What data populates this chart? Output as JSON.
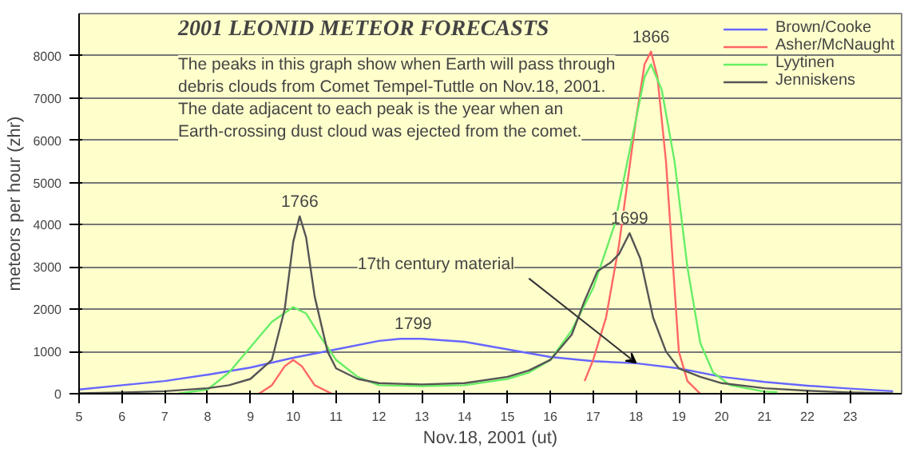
{
  "chart_data": {
    "type": "line",
    "title": "2001 LEONID METEOR FORECASTS",
    "xlabel": "Nov.18, 2001 (ut)",
    "ylabel": "meteors per hour (zhr)",
    "xlim": [
      5,
      24.2
    ],
    "xticks": [
      5,
      6,
      7,
      8,
      9,
      10,
      11,
      12,
      13,
      14,
      15,
      16,
      17,
      18,
      19,
      20,
      21,
      22,
      23
    ],
    "ylim": [
      0,
      9000
    ],
    "yticks": [
      0,
      1000,
      2000,
      3000,
      4000,
      5000,
      6000,
      7000,
      8000
    ],
    "grid": "y",
    "legend": "top right",
    "marker": "none",
    "line_style": "solid",
    "annotations": [
      "The peaks in this graph show when Earth will pass through\ndebris clouds from Comet Tempel-Tuttle on Nov.18, 2001.\nThe date adjacent to each peak is the year when an\nEarth-crossing dust cloud was ejected from the comet.",
      {
        "text": "1766",
        "x": 10.15,
        "y": 4200
      },
      {
        "text": "1799",
        "x": 12.8,
        "y": 1300
      },
      {
        "text": "1699",
        "x": 17.85,
        "y": 3800
      },
      {
        "text": "1866",
        "x": 18.35,
        "y": 8100
      },
      {
        "text": "17th century material",
        "x": 18.0,
        "y": 730
      }
    ],
    "series": [
      {
        "name": "Brown/Cooke",
        "color": "#6666ff",
        "x": [
          5,
          6,
          7,
          8,
          9,
          10,
          11,
          12,
          12.5,
          13,
          14,
          15,
          16,
          17,
          18,
          19,
          20,
          21,
          22,
          23,
          24
        ],
        "values": [
          100,
          200,
          300,
          450,
          620,
          850,
          1050,
          1250,
          1300,
          1300,
          1230,
          1050,
          870,
          770,
          720,
          600,
          400,
          280,
          190,
          120,
          60
        ]
      },
      {
        "name": "Asher/McNaught",
        "color": "#ff6666",
        "x": [
          9.2,
          9.5,
          9.8,
          10,
          10.2,
          10.5,
          10.9,
          16.5,
          16.8,
          17,
          17.3,
          17.6,
          17.8,
          18,
          18.2,
          18.35,
          18.5,
          18.7,
          18.9,
          19,
          19.2,
          19.5
        ],
        "values": [
          0,
          200,
          650,
          800,
          650,
          200,
          0,
          null,
          300,
          800,
          1800,
          3500,
          5000,
          6500,
          7800,
          8100,
          7500,
          5500,
          2500,
          1000,
          300,
          0
        ]
      },
      {
        "name": "Lyytinen",
        "color": "#66ee66",
        "x": [
          7.3,
          8,
          8.5,
          9,
          9.5,
          10,
          10.3,
          10.6,
          11,
          11.5,
          12,
          13,
          14,
          15,
          15.5,
          16,
          16.5,
          17,
          17.5,
          17.9,
          18.2,
          18.35,
          18.6,
          18.9,
          19.2,
          19.5,
          19.8,
          20.2,
          21,
          21.3
        ],
        "values": [
          0,
          100,
          500,
          1100,
          1700,
          2050,
          1900,
          1400,
          800,
          400,
          200,
          180,
          200,
          350,
          500,
          800,
          1500,
          2500,
          4000,
          6000,
          7500,
          7800,
          7200,
          5500,
          3000,
          1200,
          500,
          200,
          50,
          40
        ]
      },
      {
        "name": "Jenniskens",
        "color": "#555555",
        "x": [
          5,
          6,
          7,
          8,
          8.5,
          9,
          9.5,
          9.8,
          10,
          10.15,
          10.3,
          10.5,
          10.8,
          11,
          11.5,
          12,
          13,
          14,
          15,
          15.5,
          16,
          16.5,
          16.8,
          17.1,
          17.4,
          17.6,
          17.85,
          18.1,
          18.4,
          18.7,
          19,
          19.5,
          20,
          21,
          22,
          23,
          24
        ],
        "values": [
          10,
          30,
          60,
          130,
          200,
          350,
          800,
          2000,
          3600,
          4200,
          3700,
          2300,
          1000,
          600,
          350,
          250,
          220,
          250,
          400,
          550,
          800,
          1400,
          2200,
          2900,
          3100,
          3300,
          3800,
          3200,
          1800,
          1000,
          600,
          400,
          250,
          130,
          70,
          30,
          10
        ]
      }
    ]
  }
}
